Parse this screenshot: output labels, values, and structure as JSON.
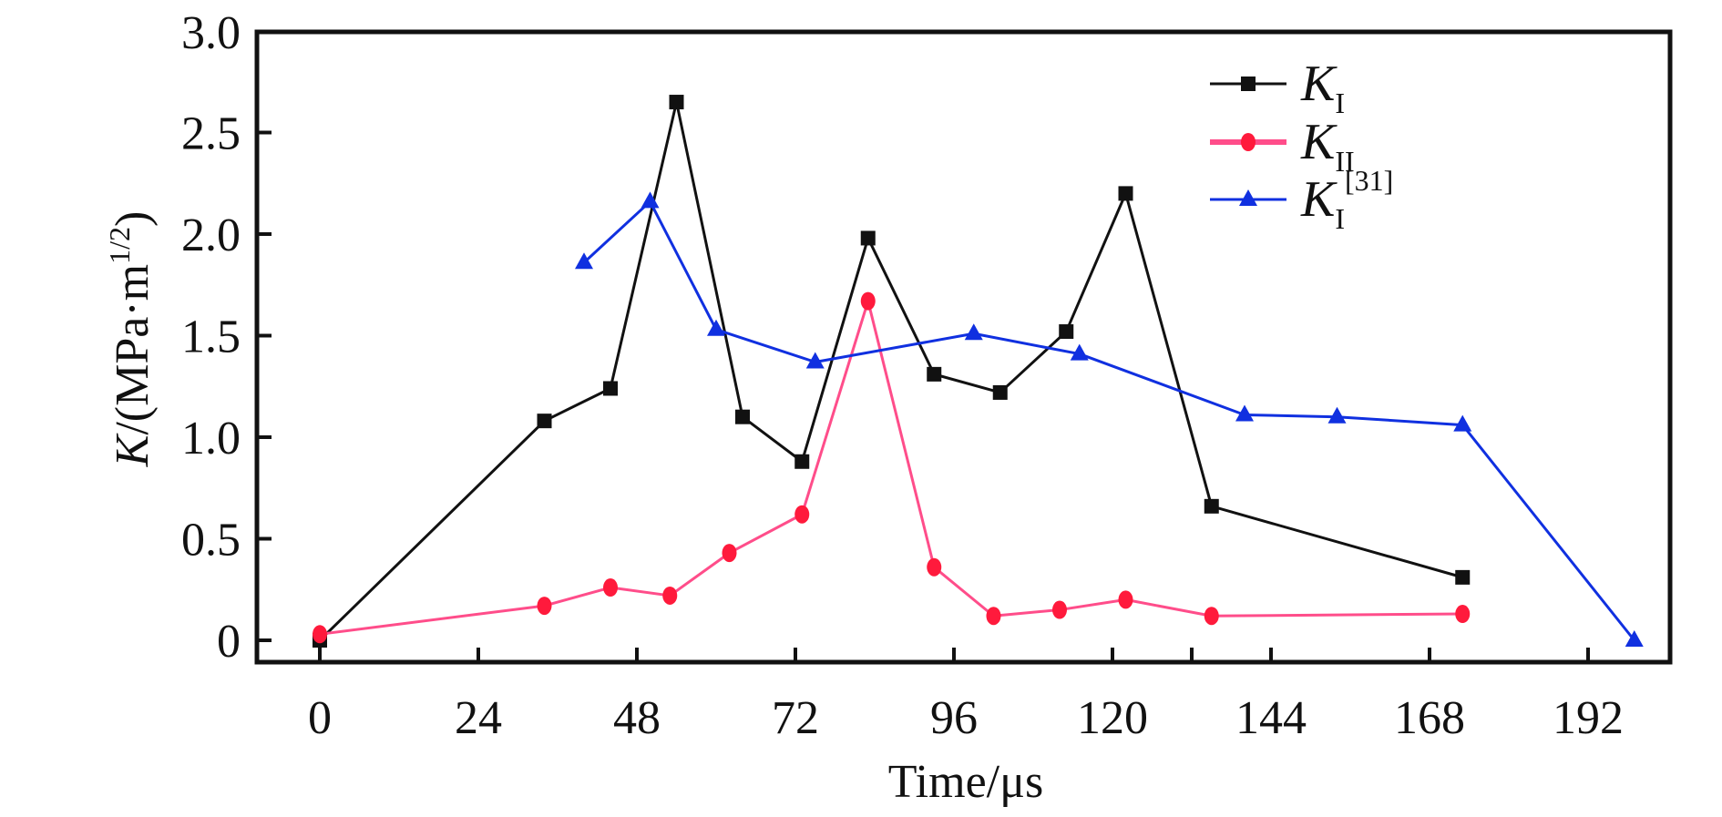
{
  "chart_data": {
    "type": "line",
    "title": "",
    "xlabel": "Time/μs",
    "ylabel": "K/(MPa·m^1/2)",
    "ylabel_parts": {
      "italic": "K",
      "rest": "/(MPa·m",
      "sup": "1/2",
      "close": ")"
    },
    "xlim": [
      -7,
      208
    ],
    "ylim": [
      -0.1,
      3.0
    ],
    "x_ticks": [
      0,
      24,
      48,
      72,
      96,
      120,
      144,
      168,
      192
    ],
    "x_tick_labels": [
      "0",
      "24",
      "48",
      "72",
      "96",
      "120",
      "144",
      "168",
      "192"
    ],
    "y_ticks": [
      0,
      0.5,
      1.0,
      1.5,
      2.0,
      2.5,
      3.0
    ],
    "y_tick_labels": [
      "0",
      "0.5",
      "1.0",
      "1.5",
      "2.0",
      "2.5",
      "3.0"
    ],
    "grid": false,
    "legend_position": "top-right",
    "series": [
      {
        "name": "K_I",
        "label_main": "K",
        "label_sub": "I",
        "label_sup": "",
        "color": "#111111",
        "marker": "square",
        "x": [
          0,
          34,
          44,
          54,
          64,
          73,
          83,
          93,
          103,
          113,
          122,
          135,
          173
        ],
        "y": [
          0.0,
          1.08,
          1.24,
          2.65,
          1.1,
          0.88,
          1.98,
          1.31,
          1.22,
          1.52,
          2.2,
          0.66,
          0.31
        ]
      },
      {
        "name": "K_II",
        "label_main": "K",
        "label_sub": "II",
        "label_sup": "",
        "color": "#ff1a3c",
        "line_color": "#ff4d8a",
        "marker": "circle",
        "x": [
          0,
          34,
          44,
          53,
          62,
          73,
          83,
          93,
          102,
          112,
          122,
          135,
          173
        ],
        "y": [
          0.03,
          0.17,
          0.26,
          0.22,
          0.43,
          0.62,
          1.67,
          0.36,
          0.12,
          0.15,
          0.2,
          0.12,
          0.13
        ]
      },
      {
        "name": "K_I[31]",
        "label_main": "K",
        "label_sub": "I",
        "label_sup": "[31]",
        "color": "#1030e0",
        "marker": "triangle",
        "x": [
          40,
          50,
          60,
          75,
          99,
          115,
          140,
          154,
          173,
          199
        ],
        "y": [
          1.86,
          2.16,
          1.53,
          1.37,
          1.51,
          1.41,
          1.11,
          1.1,
          1.06,
          0.0
        ]
      }
    ]
  }
}
